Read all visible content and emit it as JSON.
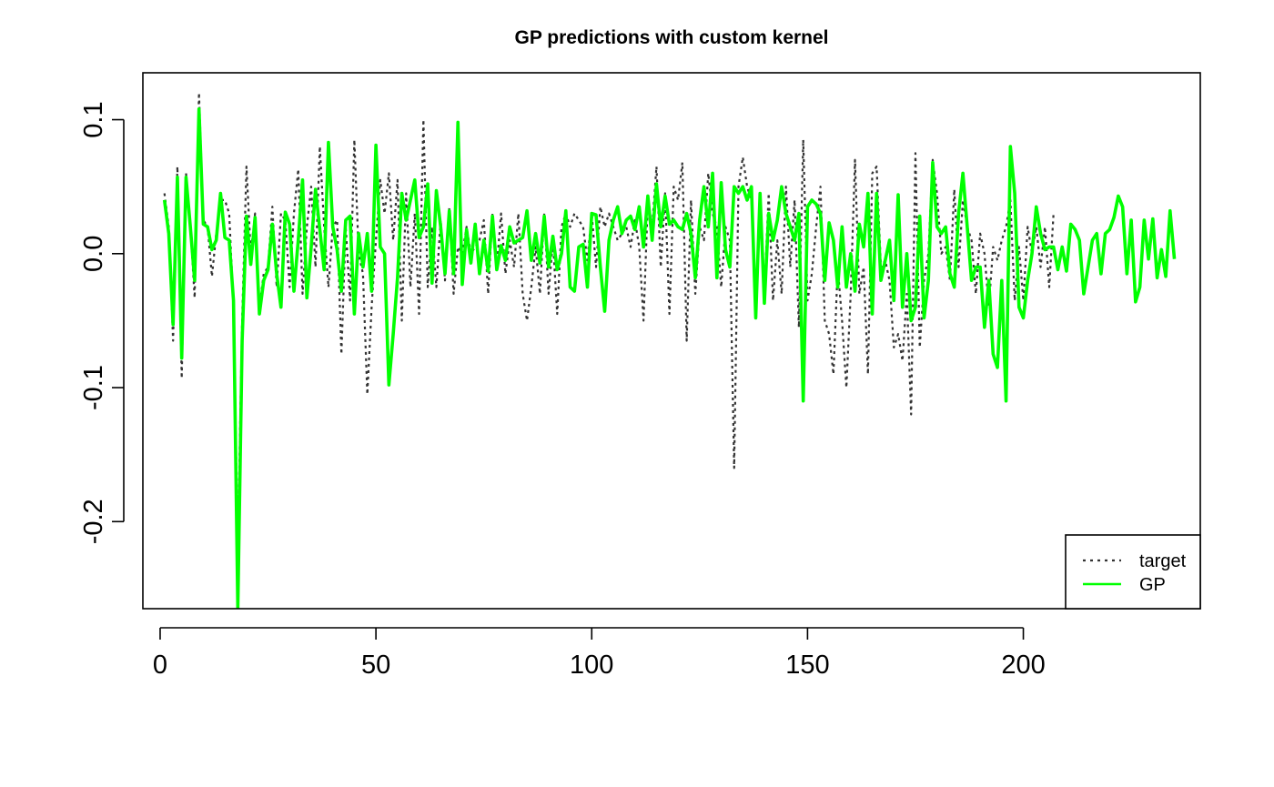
{
  "chart_data": {
    "type": "line",
    "title": "GP predictions with custom kernel",
    "xlabel": "",
    "ylabel": "",
    "xlim": [
      -4,
      241
    ],
    "ylim": [
      -0.265,
      0.135
    ],
    "x_ticks": [
      0,
      50,
      100,
      150,
      200
    ],
    "x_tick_labels": [
      "0",
      "50",
      "100",
      "150",
      "200"
    ],
    "y_ticks": [
      -0.2,
      -0.1,
      0.0,
      0.1
    ],
    "y_tick_labels": [
      "-0.2",
      "-0.1",
      "0.0",
      "0.1"
    ],
    "grid": false,
    "legend": {
      "position": "bottom-right",
      "entries": [
        {
          "label": "target",
          "style": "dotted",
          "color": "#333333"
        },
        {
          "label": "GP",
          "style": "solid",
          "color": "#00ff00"
        }
      ]
    },
    "series": [
      {
        "name": "target",
        "color": "#333333",
        "style": "dotted",
        "x_start": 1,
        "values": [
          0.045,
          0.02,
          -0.065,
          0.065,
          -0.093,
          0.06,
          0.02,
          -0.033,
          0.12,
          0.025,
          0.02,
          -0.017,
          0.015,
          0.04,
          0.04,
          0.03,
          -0.04,
          -0.22,
          -0.05,
          0.065,
          0.0,
          0.03,
          -0.04,
          -0.015,
          -0.01,
          0.035,
          -0.025,
          0.03,
          0.025,
          -0.025,
          0.03,
          0.063,
          -0.03,
          0.02,
          0.05,
          -0.01,
          0.08,
          0.02,
          -0.025,
          0.02,
          0.025,
          -0.075,
          0.02,
          -0.035,
          0.085,
          0.0,
          -0.015,
          -0.105,
          -0.04,
          0.01,
          0.055,
          0.03,
          0.06,
          0.01,
          0.055,
          -0.05,
          0.045,
          -0.025,
          0.03,
          -0.045,
          0.1,
          -0.025,
          0.02,
          -0.025,
          0.025,
          -0.02,
          0.035,
          -0.03,
          0.005,
          0.0,
          0.02,
          0.0,
          0.005,
          0.01,
          0.025,
          -0.03,
          0.03,
          -0.01,
          0.03,
          -0.015,
          0.01,
          -0.01,
          0.03,
          -0.03,
          -0.05,
          -0.025,
          0.005,
          -0.03,
          0.03,
          -0.03,
          0.01,
          -0.045,
          0.02,
          0.03,
          0.02,
          0.03,
          0.025,
          0.02,
          -0.005,
          0.03,
          -0.01,
          0.035,
          0.02,
          0.03,
          0.02,
          0.01,
          0.015,
          0.02,
          0.005,
          0.025,
          0.005,
          -0.05,
          0.04,
          0.02,
          0.065,
          -0.01,
          0.045,
          -0.045,
          0.05,
          0.04,
          0.068,
          -0.065,
          0.04,
          -0.03,
          0.02,
          0.01,
          0.06,
          0.03,
          0.02,
          -0.025,
          0.02,
          0.01,
          -0.16,
          0.05,
          0.072,
          0.05,
          0.04,
          -0.035,
          0.03,
          -0.03,
          0.045,
          -0.035,
          0.01,
          -0.03,
          0.05,
          -0.01,
          0.04,
          -0.055,
          0.085,
          -0.035,
          -0.015,
          0.02,
          0.05,
          -0.05,
          -0.06,
          -0.09,
          -0.01,
          -0.05,
          -0.1,
          -0.03,
          0.07,
          -0.03,
          -0.01,
          -0.09,
          0.06,
          0.065,
          -0.01,
          -0.005,
          -0.02,
          -0.07,
          -0.06,
          -0.08,
          -0.03,
          -0.12,
          0.075,
          -0.07,
          -0.02,
          0.0,
          0.07,
          0.045,
          0.0,
          0.005,
          -0.02,
          0.048,
          -0.01,
          0.04,
          0.02,
          0.01,
          -0.03,
          0.015,
          0.0,
          -0.04,
          0.005,
          -0.005,
          0.01,
          0.02,
          0.04,
          -0.035,
          0.005,
          -0.035,
          0.02,
          0.0,
          0.02,
          -0.01,
          0.02,
          -0.025,
          0.03
        ]
      },
      {
        "name": "GP",
        "color": "#00ff00",
        "style": "solid",
        "x_start": 1,
        "values": [
          0.04,
          0.015,
          -0.053,
          0.057,
          -0.078,
          0.057,
          0.02,
          -0.02,
          0.108,
          0.022,
          0.02,
          0.003,
          0.01,
          0.045,
          0.012,
          0.01,
          -0.035,
          -0.265,
          -0.065,
          0.028,
          -0.008,
          0.027,
          -0.045,
          -0.02,
          -0.012,
          0.022,
          -0.015,
          -0.04,
          0.031,
          0.022,
          -0.028,
          0.01,
          0.055,
          -0.033,
          0.005,
          0.048,
          0.018,
          -0.012,
          0.083,
          0.02,
          0.003,
          -0.028,
          0.025,
          0.028,
          -0.045,
          0.015,
          -0.01,
          0.015,
          -0.028,
          0.081,
          0.005,
          0.0,
          -0.098,
          -0.06,
          -0.018,
          0.045,
          0.025,
          0.04,
          0.055,
          0.012,
          0.02,
          0.052,
          -0.022,
          0.047,
          0.02,
          -0.015,
          0.032,
          -0.015,
          0.098,
          -0.023,
          0.018,
          -0.007,
          0.022,
          -0.015,
          0.01,
          -0.013,
          0.028,
          -0.012,
          0.006,
          -0.005,
          0.02,
          0.008,
          0.01,
          0.012,
          0.032,
          -0.005,
          0.015,
          -0.007,
          0.028,
          -0.01,
          0.013,
          -0.012,
          0.0,
          0.032,
          -0.025,
          -0.028,
          0.005,
          0.007,
          -0.025,
          0.03,
          0.029,
          -0.01,
          -0.043,
          0.01,
          0.025,
          0.035,
          0.015,
          0.025,
          0.028,
          0.018,
          0.035,
          0.005,
          0.043,
          0.01,
          0.052,
          0.02,
          0.043,
          0.022,
          0.025,
          0.02,
          0.018,
          0.03,
          0.015,
          -0.018,
          0.025,
          0.05,
          0.02,
          0.06,
          -0.018,
          0.053,
          0.003,
          -0.01,
          0.05,
          0.045,
          0.05,
          0.04,
          0.05,
          -0.048,
          0.045,
          -0.037,
          0.03,
          0.01,
          0.025,
          0.05,
          0.03,
          0.02,
          0.01,
          0.03,
          -0.11,
          0.035,
          0.04,
          0.037,
          0.03,
          -0.02,
          0.023,
          0.01,
          -0.025,
          0.02,
          -0.025,
          0.0,
          -0.028,
          0.022,
          0.005,
          0.045,
          -0.045,
          0.045,
          -0.02,
          -0.005,
          0.01,
          -0.035,
          0.044,
          -0.04,
          0.0,
          -0.05,
          -0.04,
          0.028,
          -0.048,
          -0.02,
          0.068,
          0.02,
          0.015,
          0.02,
          -0.015,
          -0.025,
          0.03,
          0.06,
          0.02,
          -0.02,
          -0.01,
          -0.01,
          -0.055,
          -0.02,
          -0.075,
          -0.085,
          -0.02,
          -0.11,
          0.08,
          0.045,
          -0.04,
          -0.048,
          -0.02,
          0.0,
          0.035,
          0.015,
          0.003,
          0.005,
          0.005,
          -0.012,
          0.005,
          -0.013,
          0.022,
          0.018,
          0.01,
          -0.03,
          -0.01,
          0.01,
          0.015,
          -0.015,
          0.015,
          0.018,
          0.027,
          0.043,
          0.035,
          -0.015,
          0.025,
          -0.036,
          -0.025,
          0.025,
          -0.004,
          0.026,
          -0.018,
          0.003,
          -0.017,
          0.032,
          -0.004
        ]
      }
    ]
  }
}
